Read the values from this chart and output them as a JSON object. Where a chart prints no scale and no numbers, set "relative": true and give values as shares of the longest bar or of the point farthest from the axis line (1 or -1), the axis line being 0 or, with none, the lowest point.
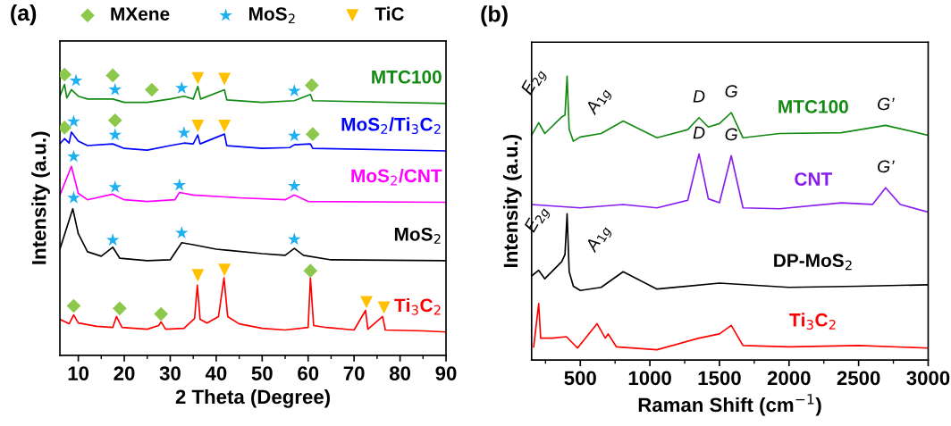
{
  "chart_data": [
    {
      "type": "line",
      "title": "(a)",
      "xlabel": "2 Theta (Degree)",
      "ylabel": "Intensity (a.u.)",
      "relative": true,
      "xlim": [
        6,
        90
      ],
      "xticks": [
        10,
        20,
        30,
        40,
        50,
        60,
        70,
        80,
        90
      ],
      "tick_labels": "x",
      "legend": "top",
      "grid": false,
      "series": [
        {
          "name": "MTC100",
          "color": "#138a13",
          "x": [
            6,
            7,
            7.5,
            8.5,
            10,
            12,
            17.5,
            20,
            25,
            30,
            33,
            35,
            36,
            36.6,
            41.8,
            42.3,
            50,
            57,
            60.5,
            61,
            90
          ],
          "values": [
            0.923,
            0.965,
            0.917,
            0.946,
            0.923,
            0.913,
            0.913,
            0.901,
            0.901,
            0.913,
            0.923,
            0.913,
            0.958,
            0.913,
            0.946,
            0.91,
            0.901,
            0.907,
            0.929,
            0.907,
            0.897
          ]
        },
        {
          "name": "MoS$_{2}$/Ti$_{3}$C$_{2}$",
          "color": "#0000ff",
          "x": [
            6,
            7,
            8,
            8.5,
            10,
            12,
            17.5,
            20,
            25,
            30,
            33,
            35,
            36,
            36.5,
            41.8,
            42.3,
            50,
            56,
            57,
            60.5,
            61,
            90
          ],
          "values": [
            0.753,
            0.772,
            0.756,
            0.795,
            0.763,
            0.747,
            0.753,
            0.737,
            0.731,
            0.747,
            0.756,
            0.753,
            0.785,
            0.753,
            0.788,
            0.747,
            0.737,
            0.74,
            0.75,
            0.753,
            0.737,
            0.728
          ]
        },
        {
          "name": "MoS$_{2}$/CNT",
          "color": "#ff00ff",
          "x": [
            6,
            8.5,
            10,
            12,
            17.5,
            20,
            25,
            31,
            32,
            35,
            45,
            55,
            57,
            60,
            90
          ],
          "values": [
            0.571,
            0.673,
            0.577,
            0.554,
            0.574,
            0.554,
            0.548,
            0.554,
            0.58,
            0.571,
            0.561,
            0.554,
            0.571,
            0.548,
            0.545
          ]
        },
        {
          "name": "MoS$_{2}$",
          "color": "#000000",
          "x": [
            6,
            8.8,
            10,
            12,
            15,
            17.5,
            19,
            25,
            30,
            32.5,
            35,
            40,
            50,
            55,
            57,
            59,
            65,
            90
          ],
          "values": [
            0.378,
            0.522,
            0.433,
            0.369,
            0.353,
            0.385,
            0.346,
            0.337,
            0.34,
            0.401,
            0.394,
            0.378,
            0.362,
            0.356,
            0.381,
            0.356,
            0.34,
            0.337
          ]
        },
        {
          "name": "Ti$_{3}$C$_{2}$",
          "color": "#ff0000",
          "x": [
            6,
            8,
            9,
            10,
            14,
            17.5,
            18.3,
            19.5,
            25,
            27.5,
            28,
            29,
            33,
            34.5,
            35.3,
            35.9,
            36.5,
            38,
            40.5,
            41.7,
            42.5,
            45,
            50,
            55,
            60,
            60.5,
            61.2,
            64,
            70,
            72.5,
            73,
            76.2,
            76.8,
            85,
            90
          ],
          "values": [
            0.128,
            0.112,
            0.144,
            0.115,
            0.103,
            0.099,
            0.138,
            0.099,
            0.093,
            0.106,
            0.119,
            0.093,
            0.096,
            0.119,
            0.131,
            0.25,
            0.128,
            0.115,
            0.138,
            0.276,
            0.138,
            0.112,
            0.096,
            0.09,
            0.099,
            0.276,
            0.106,
            0.099,
            0.09,
            0.16,
            0.093,
            0.138,
            0.09,
            0.087,
            0.083
          ]
        },
        {
          "name": "MXene",
          "type": "scatter",
          "marker": "diamond",
          "color": "#8cc84b",
          "x": [
            7,
            17.5,
            26,
            60.8,
            7,
            18,
            61,
            9,
            19,
            28,
            60.5
          ],
          "values": [
            1.0,
            0.997,
            0.946,
            0.962,
            0.811,
            0.837,
            0.788,
            0.176,
            0.167,
            0.147,
            0.301
          ]
        },
        {
          "name": "MoS$_{2}$",
          "type": "scatter",
          "marker": "star",
          "color": "#1eb0f0",
          "x": [
            9.5,
            18,
            32.5,
            57,
            9,
            18,
            33,
            57,
            9,
            18,
            32,
            57,
            9,
            17.5,
            32.5,
            57
          ],
          "values": [
            0.978,
            0.946,
            0.952,
            0.942,
            0.833,
            0.785,
            0.792,
            0.782,
            0.708,
            0.599,
            0.606,
            0.603,
            0.561,
            0.41,
            0.436,
            0.413
          ]
        },
        {
          "name": "TiC",
          "type": "scatter",
          "marker": "triangle",
          "color": "#ffc000",
          "x": [
            36,
            41.8,
            36,
            41.8,
            36,
            41.8,
            72.7,
            76.5
          ],
          "values": [
            0.987,
            0.984,
            0.817,
            0.817,
            0.285,
            0.304,
            0.189,
            0.17
          ]
        }
      ]
    },
    {
      "type": "line",
      "title": "(b)",
      "xlabel": "Raman Shift (cm$^{−1}$)",
      "ylabel": "Intensity (a.u.)",
      "relative": true,
      "xlim": [
        150,
        3000
      ],
      "xticks": [
        500,
        1000,
        1500,
        2000,
        2500,
        3000
      ],
      "tick_labels": "x",
      "grid": false,
      "series": [
        {
          "name": "MTC100",
          "color": "#138a13",
          "x": [
            150,
            201,
            245,
            367,
            390,
            405,
            420,
            450,
            500,
            650,
            808,
            1051,
            1272,
            1353,
            1420,
            1500,
            1585,
            1669,
            1933,
            2375,
            2694,
            3000
          ],
          "values": [
            0.792,
            0.836,
            0.798,
            0.857,
            0.863,
            1.0,
            0.812,
            0.771,
            0.786,
            0.798,
            0.842,
            0.783,
            0.812,
            0.854,
            0.821,
            0.833,
            0.872,
            0.783,
            0.798,
            0.801,
            0.827,
            0.792
          ]
        },
        {
          "name": "CNT",
          "color": "#8a1cf0",
          "x": [
            150,
            500,
            808,
            1051,
            1272,
            1353,
            1420,
            1500,
            1585,
            1669,
            1933,
            2375,
            2600,
            2694,
            2800,
            3000
          ],
          "values": [
            0.548,
            0.536,
            0.548,
            0.536,
            0.563,
            0.726,
            0.568,
            0.554,
            0.72,
            0.536,
            0.533,
            0.554,
            0.548,
            0.607,
            0.548,
            0.521
          ]
        },
        {
          "name": "DP-MoS$_{2}$",
          "color": "#000000",
          "x": [
            150,
            201,
            245,
            367,
            390,
            405,
            420,
            450,
            500,
            650,
            808,
            1051,
            1500,
            2000,
            2500,
            3000
          ],
          "values": [
            0.296,
            0.316,
            0.286,
            0.347,
            0.372,
            0.515,
            0.311,
            0.26,
            0.245,
            0.256,
            0.311,
            0.25,
            0.271,
            0.256,
            0.26,
            0.265
          ]
        },
        {
          "name": "Ti$_{3}$C$_{2}$",
          "color": "#ff0000",
          "x": [
            165,
            201,
            215,
            300,
            400,
            480,
            620,
            680,
            700,
            760,
            1051,
            1353,
            1500,
            1585,
            1669,
            2000,
            2500,
            3000
          ],
          "values": [
            0.046,
            0.199,
            0.077,
            0.077,
            0.082,
            0.042,
            0.128,
            0.077,
            0.092,
            0.046,
            0.036,
            0.077,
            0.092,
            0.122,
            0.051,
            0.046,
            0.051,
            0.042
          ]
        }
      ],
      "annotations": [
        {
          "text": "E$_{2g}$",
          "x": 367,
          "y": 0.857
        },
        {
          "text": "A$_{1g}$",
          "x": 405,
          "y": 1.0
        },
        {
          "text": "D",
          "x": 1353,
          "y": 0.854
        },
        {
          "text": "G",
          "x": 1585,
          "y": 0.872
        },
        {
          "text": "G’",
          "x": 2694,
          "y": 0.827
        },
        {
          "text": "D",
          "x": 1353,
          "y": 0.726
        },
        {
          "text": "G",
          "x": 1585,
          "y": 0.72
        },
        {
          "text": "G’",
          "x": 2694,
          "y": 0.607
        },
        {
          "text": "E$_{2g}$",
          "x": 390,
          "y": 0.372
        },
        {
          "text": "A$_{1g}$",
          "x": 405,
          "y": 0.515
        }
      ]
    }
  ]
}
